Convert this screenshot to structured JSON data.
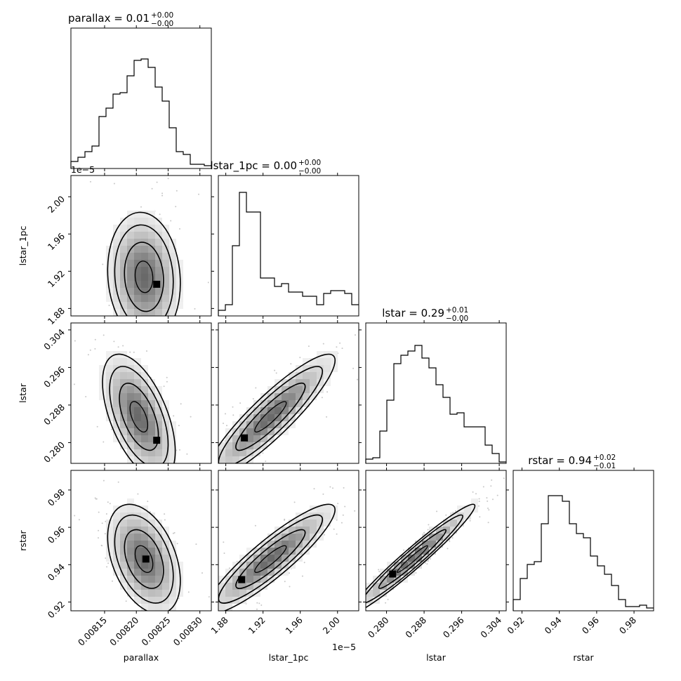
{
  "chart_data": {
    "type": "corner",
    "parameters": [
      "parallax",
      "lstar_1pc",
      "lstar",
      "rstar"
    ],
    "titles": {
      "parallax": {
        "name": "parallax",
        "value": "0.01",
        "plus": "+0.00",
        "minus": "−0.00"
      },
      "lstar_1pc": {
        "name": "lstar_1pc",
        "value": "0.00",
        "plus": "+0.00",
        "minus": "−0.00"
      },
      "lstar": {
        "name": "lstar",
        "value": "0.29",
        "plus": "+0.01",
        "minus": "−0.00"
      },
      "rstar": {
        "name": "rstar",
        "value": "0.94",
        "plus": "+0.02",
        "minus": "−0.01"
      }
    },
    "axis_labels": {
      "parallax": "parallax",
      "lstar_1pc": "lstar_1pc",
      "lstar": "lstar",
      "rstar": "rstar"
    },
    "offset_text": "1e−5",
    "ranges": {
      "parallax": [
        0.008097,
        0.008318
      ],
      "lstar_1pc": [
        1.872,
        2.0228
      ],
      "lstar": [
        0.27558,
        0.30548
      ],
      "rstar": [
        0.9153,
        0.9905
      ]
    },
    "ticks": {
      "parallax": [
        {
          "v": 0.00815,
          "label": "0.00815"
        },
        {
          "v": 0.0082,
          "label": "0.00820"
        },
        {
          "v": 0.00825,
          "label": "0.00825"
        },
        {
          "v": 0.0083,
          "label": "0.00830"
        }
      ],
      "lstar_1pc": [
        {
          "v": 1.88,
          "label": "1.88"
        },
        {
          "v": 1.92,
          "label": "1.92"
        },
        {
          "v": 1.96,
          "label": "1.96"
        },
        {
          "v": 2.0,
          "label": "2.00"
        }
      ],
      "lstar": [
        {
          "v": 0.28,
          "label": "0.280"
        },
        {
          "v": 0.288,
          "label": "0.288"
        },
        {
          "v": 0.296,
          "label": "0.296"
        },
        {
          "v": 0.304,
          "label": "0.304"
        }
      ],
      "rstar": [
        {
          "v": 0.92,
          "label": "0.92"
        },
        {
          "v": 0.94,
          "label": "0.94"
        },
        {
          "v": 0.96,
          "label": "0.96"
        },
        {
          "v": 0.98,
          "label": "0.98"
        }
      ]
    },
    "histograms": {
      "parallax": [
        0.05,
        0.08,
        0.12,
        0.16,
        0.37,
        0.43,
        0.53,
        0.54,
        0.66,
        0.77,
        0.78,
        0.72,
        0.58,
        0.48,
        0.29,
        0.12,
        0.1,
        0.03,
        0.03,
        0.02
      ],
      "lstar_1pc": [
        0.04,
        0.08,
        0.5,
        0.88,
        0.74,
        0.74,
        0.27,
        0.27,
        0.21,
        0.23,
        0.17,
        0.17,
        0.14,
        0.14,
        0.08,
        0.16,
        0.18,
        0.18,
        0.16,
        0.08
      ],
      "lstar": [
        0.03,
        0.04,
        0.23,
        0.45,
        0.71,
        0.77,
        0.8,
        0.84,
        0.75,
        0.68,
        0.56,
        0.47,
        0.35,
        0.36,
        0.26,
        0.26,
        0.26,
        0.13,
        0.07,
        0.01
      ],
      "rstar": [
        0.08,
        0.23,
        0.33,
        0.35,
        0.62,
        0.82,
        0.82,
        0.78,
        0.62,
        0.55,
        0.52,
        0.39,
        0.32,
        0.26,
        0.18,
        0.08,
        0.03,
        0.03,
        0.04,
        0.02
      ]
    },
    "pairs": [
      {
        "x": "parallax",
        "y": "lstar_1pc",
        "center": [
          0.008212,
          1.914
        ],
        "sd": [
          2.79e-05,
          0.0338
        ],
        "rho": -0.1,
        "peak": [
          0.008232,
          1.906
        ]
      },
      {
        "x": "parallax",
        "y": "lstar",
        "center": [
          0.008204,
          0.2855
        ],
        "sd": [
          2.79e-05,
          0.0065
        ],
        "rho": -0.55,
        "peak": [
          0.008232,
          0.2805
        ]
      },
      {
        "x": "lstar_1pc",
        "y": "lstar",
        "center": [
          1.928,
          0.2855
        ],
        "sd": [
          0.0338,
          0.0065
        ],
        "rho": 0.9,
        "peak": [
          1.9,
          0.281
        ]
      },
      {
        "x": "parallax",
        "y": "rstar",
        "center": [
          0.008212,
          0.943
        ],
        "sd": [
          2.79e-05,
          0.0143
        ],
        "rho": -0.4,
        "peak": [
          0.008215,
          0.943
        ]
      },
      {
        "x": "lstar_1pc",
        "y": "rstar",
        "center": [
          1.928,
          0.943
        ],
        "sd": [
          0.0338,
          0.0143
        ],
        "rho": 0.9,
        "peak": [
          1.897,
          0.932
        ]
      },
      {
        "x": "lstar",
        "y": "rstar",
        "center": [
          0.2855,
          0.943
        ],
        "sd": [
          0.0065,
          0.0143
        ],
        "rho": 0.97,
        "peak": [
          0.2813,
          0.935
        ]
      }
    ]
  }
}
